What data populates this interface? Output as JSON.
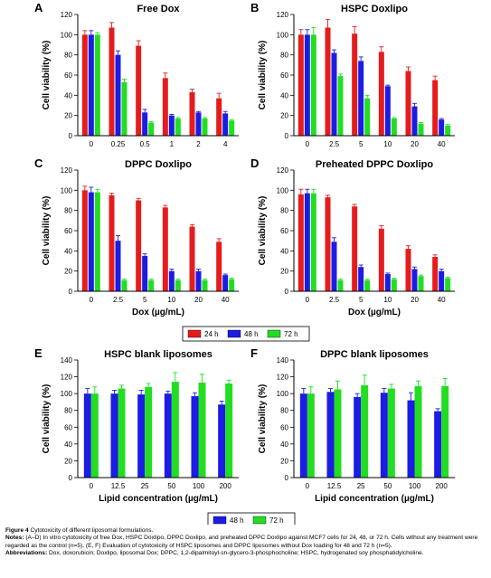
{
  "chart_data": [
    {
      "panel": "A",
      "title": "Free Dox",
      "type": "bar",
      "ylabel": "Cell viability (%)",
      "xlabel": "",
      "ylim": [
        0,
        120
      ],
      "yticks": [
        0,
        20,
        40,
        60,
        80,
        100,
        120
      ],
      "categories": [
        "0",
        "0.25",
        "0.5",
        "1",
        "2",
        "4"
      ],
      "series": [
        {
          "name": "24 h",
          "values": [
            100,
            107,
            89,
            57,
            43,
            37
          ],
          "errors": [
            4,
            5,
            5,
            5,
            3,
            5
          ]
        },
        {
          "name": "48 h",
          "values": [
            100,
            80,
            23,
            20,
            23,
            22
          ],
          "errors": [
            4,
            4,
            3,
            1,
            1,
            2
          ]
        },
        {
          "name": "72 h",
          "values": [
            100,
            53,
            13,
            17,
            17,
            15
          ],
          "errors": [
            2,
            3,
            1,
            1,
            1,
            1
          ]
        }
      ]
    },
    {
      "panel": "B",
      "title": "HSPC Doxlipo",
      "type": "bar",
      "ylabel": "Cell viability (%)",
      "xlabel": "",
      "ylim": [
        0,
        120
      ],
      "yticks": [
        0,
        20,
        40,
        60,
        80,
        100,
        120
      ],
      "categories": [
        "0",
        "2.5",
        "5",
        "10",
        "20",
        "40"
      ],
      "series": [
        {
          "name": "24 h",
          "values": [
            100,
            107,
            101,
            83,
            64,
            55
          ],
          "errors": [
            5,
            8,
            7,
            5,
            4,
            4
          ]
        },
        {
          "name": "48 h",
          "values": [
            100,
            82,
            74,
            49,
            29,
            16
          ],
          "errors": [
            5,
            3,
            4,
            1,
            3,
            1
          ]
        },
        {
          "name": "72 h",
          "values": [
            100,
            59,
            37,
            17,
            12,
            10
          ],
          "errors": [
            7,
            2,
            3,
            1,
            1,
            1
          ]
        }
      ]
    },
    {
      "panel": "C",
      "title": "DPPC Doxlipo",
      "type": "bar",
      "ylabel": "Cell viability (%)",
      "xlabel": "Dox (µg/mL)",
      "ylim": [
        0,
        120
      ],
      "yticks": [
        0,
        20,
        40,
        60,
        80,
        100,
        120
      ],
      "categories": [
        "0",
        "2.5",
        "5",
        "10",
        "20",
        "40"
      ],
      "series": [
        {
          "name": "24 h",
          "values": [
            100,
            95,
            90,
            83,
            64,
            49
          ],
          "errors": [
            4,
            2,
            2,
            2,
            2,
            3
          ]
        },
        {
          "name": "48 h",
          "values": [
            98,
            50,
            35,
            20,
            20,
            16
          ],
          "errors": [
            5,
            5,
            2,
            2,
            2,
            1
          ]
        },
        {
          "name": "72 h",
          "values": [
            98,
            11,
            11,
            11,
            11,
            12
          ],
          "errors": [
            3,
            1,
            1,
            1,
            1,
            1
          ]
        }
      ]
    },
    {
      "panel": "D",
      "title": "Preheated DPPC Doxlipo",
      "type": "bar",
      "ylabel": "Cell viability (%)",
      "xlabel": "Dox (µg/mL)",
      "ylim": [
        0,
        120
      ],
      "yticks": [
        0,
        20,
        40,
        60,
        80,
        100,
        120
      ],
      "categories": [
        "0",
        "2.5",
        "5",
        "10",
        "20",
        "40"
      ],
      "series": [
        {
          "name": "24 h",
          "values": [
            96,
            93,
            84,
            62,
            42,
            34
          ],
          "errors": [
            5,
            2,
            2,
            3,
            3,
            2
          ]
        },
        {
          "name": "48 h",
          "values": [
            97,
            49,
            24,
            17,
            22,
            20
          ],
          "errors": [
            4,
            4,
            2,
            1,
            2,
            2
          ]
        },
        {
          "name": "72 h",
          "values": [
            97,
            11,
            11,
            12,
            15,
            13
          ],
          "errors": [
            4,
            1,
            1,
            1,
            1,
            1
          ]
        }
      ]
    },
    {
      "panel": "E",
      "title": "HSPC blank liposomes",
      "type": "bar",
      "ylabel": "Cell viability (%)",
      "xlabel": "Lipid concentration (µg/mL)",
      "ylim": [
        0,
        140
      ],
      "yticks": [
        0,
        20,
        40,
        60,
        80,
        100,
        120,
        140
      ],
      "categories": [
        "0",
        "12.5",
        "25",
        "50",
        "100",
        "200"
      ],
      "series": [
        {
          "name": "48 h",
          "values": [
            100,
            100,
            99,
            100,
            97,
            87
          ],
          "errors": [
            6,
            4,
            5,
            3,
            4,
            4
          ]
        },
        {
          "name": "72 h",
          "values": [
            100,
            106,
            108,
            114,
            113,
            112
          ],
          "errors": [
            8,
            4,
            4,
            11,
            10,
            4
          ]
        }
      ]
    },
    {
      "panel": "F",
      "title": "DPPC blank liposomes",
      "type": "bar",
      "ylabel": "Cell viability (%)",
      "xlabel": "Lipid concentration (µg/mL)",
      "ylim": [
        0,
        140
      ],
      "yticks": [
        0,
        20,
        40,
        60,
        80,
        100,
        120,
        140
      ],
      "categories": [
        "0",
        "12.5",
        "25",
        "50",
        "100",
        "200"
      ],
      "series": [
        {
          "name": "48 h",
          "values": [
            100,
            102,
            96,
            101,
            92,
            79
          ],
          "errors": [
            6,
            4,
            4,
            5,
            9,
            3
          ]
        },
        {
          "name": "72 h",
          "values": [
            100,
            105,
            110,
            106,
            109,
            109
          ],
          "errors": [
            8,
            10,
            12,
            5,
            6,
            9
          ]
        }
      ]
    }
  ],
  "legends": [
    {
      "entries": [
        "24 h",
        "48 h",
        "72 h"
      ]
    },
    {
      "entries": [
        "48 h",
        "72 h"
      ]
    }
  ],
  "colors": {
    "24 h": "#e51c1c",
    "48 h": "#1c1ce5",
    "72 h": "#22dd22"
  },
  "caption": {
    "figure_label": "Figure 4",
    "figure_title": "Cytotoxicity of different liposomal formulations.",
    "notes_label": "Notes:",
    "notes_text": "(A–D) In vitro cytotoxicity of free Dox, HSPC Doxlipo, DPPC Doxlipo, and preheated DPPC Doxlipo against MCF7 cells for 24, 48, or 72 h. Cells without any treatment were regarded as the control (n=5). (E, F) Evaluation of cytotoxicity of HSPC liposomes and DPPC liposomes without Dox loading for 48 and 72 h (n=5).",
    "abbrev_label": "Abbreviations:",
    "abbrev_text": "Dox, doxorubicin; Doxlipo, liposomal Dox; DPPC, 1,2-dipalmitoyl-sn-glycero-3-phosphocholine; HSPC, hydrogenated soy phosphatidylcholine."
  }
}
